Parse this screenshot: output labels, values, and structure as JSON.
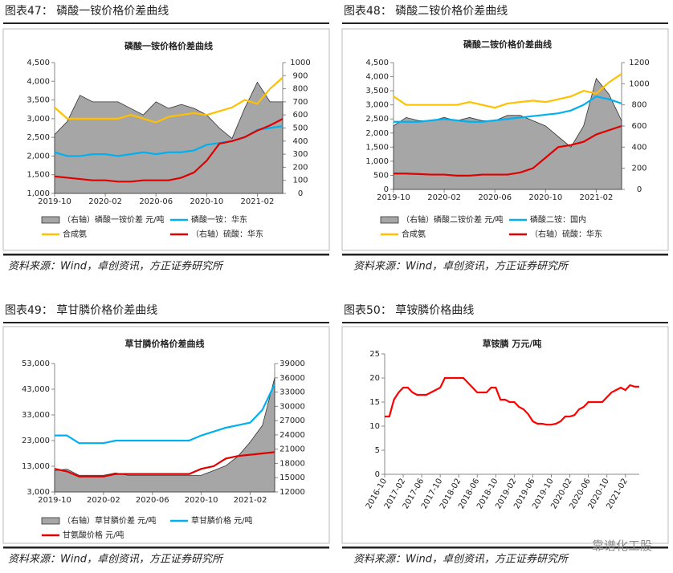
{
  "figures": [
    {
      "heading": "图表47： 磷酸一铵价格价差曲线",
      "source": "资料来源：Wind，卓创资讯，方正证券研究所"
    },
    {
      "heading": "图表48： 磷酸二铵价格价差曲线",
      "source": "资料来源：Wind，卓创资讯，方正证券研究所"
    },
    {
      "heading": "图表49： 草甘膦价格价差曲线",
      "source": "资料来源：Wind，卓创资讯，方正证券研究所"
    },
    {
      "heading": "图表50： 草铵膦价格曲线",
      "source": "资料来源：Wind，卓创资讯，方正证券研究所"
    }
  ],
  "watermark": "靠谱化工股",
  "chart_data": [
    {
      "type": "line",
      "title": "磷酸一铵价格价差曲线",
      "categories": [
        "2019-10",
        null,
        null,
        null,
        "2020-02",
        null,
        null,
        null,
        "2020-06",
        null,
        null,
        null,
        "2020-10",
        null,
        null,
        null,
        "2021-02",
        null,
        null
      ],
      "ylim": [
        1000,
        4500
      ],
      "yticks": [
        {
          "value": 1000,
          "label": "1,000"
        },
        {
          "value": 1500,
          "label": "1,500"
        },
        {
          "value": 2000,
          "label": "2,000"
        },
        {
          "value": 2500,
          "label": "2,500"
        },
        {
          "value": 3000,
          "label": "3,000"
        },
        {
          "value": 3500,
          "label": "3,500"
        },
        {
          "value": 4000,
          "label": "4,000"
        },
        {
          "value": 4500,
          "label": "4,500"
        }
      ],
      "y2lim": [
        0,
        1000
      ],
      "y2ticks": [
        0,
        100,
        200,
        300,
        400,
        500,
        600,
        700,
        800,
        900,
        1000
      ],
      "series": [
        {
          "name": "（右轴）磷酸一铵价差 元/吨",
          "color": "#a6a6a6",
          "style": "area",
          "axis": "y2",
          "values": [
            450,
            550,
            750,
            700,
            700,
            700,
            650,
            600,
            700,
            650,
            680,
            650,
            600,
            500,
            420,
            650,
            850,
            700,
            700
          ]
        },
        {
          "name": "磷酸一铵：华东",
          "color": "#00b0f0",
          "values": [
            2100,
            2000,
            2000,
            2050,
            2050,
            2000,
            2050,
            2100,
            2050,
            2100,
            2100,
            2150,
            2300,
            2350,
            2400,
            2500,
            2700,
            2750,
            2800
          ]
        },
        {
          "name": "合成氨",
          "color": "#ffc000",
          "values": [
            3300,
            3000,
            3000,
            3000,
            3000,
            3000,
            3100,
            3000,
            2900,
            3050,
            3100,
            3150,
            3100,
            3200,
            3300,
            3500,
            3400,
            3800,
            4100
          ]
        },
        {
          "name": "（右轴）硫酸：华东",
          "color": "#e00000",
          "axis": "y2",
          "values": [
            130,
            120,
            110,
            100,
            100,
            90,
            90,
            100,
            100,
            100,
            120,
            160,
            250,
            380,
            400,
            430,
            480,
            520,
            570
          ]
        }
      ]
    },
    {
      "type": "line",
      "title": "磷酸二铵价格价差曲线",
      "categories": [
        "2019-10",
        null,
        null,
        null,
        "2020-02",
        null,
        null,
        null,
        "2020-06",
        null,
        null,
        null,
        "2020-10",
        null,
        null,
        null,
        "2021-02",
        null,
        null
      ],
      "ylim": [
        0,
        4500
      ],
      "yticks": [
        0,
        {
          "value": 500,
          "label": "500"
        },
        {
          "value": 1000,
          "label": "1,000"
        },
        {
          "value": 1500,
          "label": "1,500"
        },
        {
          "value": 2000,
          "label": "2,000"
        },
        {
          "value": 2500,
          "label": "2,500"
        },
        {
          "value": 3000,
          "label": "3,000"
        },
        {
          "value": 3500,
          "label": "3,500"
        },
        {
          "value": 4000,
          "label": "4,000"
        },
        {
          "value": 4500,
          "label": "4,500"
        }
      ],
      "y2lim": [
        0,
        1200
      ],
      "y2ticks": [
        0,
        200,
        400,
        600,
        800,
        1000,
        1200
      ],
      "series": [
        {
          "name": "（右轴）磷酸二铵价差 元/吨",
          "color": "#a6a6a6",
          "style": "area",
          "axis": "y2",
          "values": [
            600,
            680,
            650,
            650,
            680,
            650,
            680,
            650,
            650,
            700,
            700,
            650,
            600,
            500,
            400,
            600,
            1050,
            900,
            650
          ]
        },
        {
          "name": "磷酸二铵：国内",
          "color": "#00b0f0",
          "values": [
            2400,
            2400,
            2400,
            2450,
            2500,
            2450,
            2400,
            2400,
            2450,
            2500,
            2550,
            2600,
            2650,
            2700,
            2800,
            3000,
            3300,
            3200,
            3050
          ]
        },
        {
          "name": "合成氨",
          "color": "#ffc000",
          "values": [
            3300,
            3000,
            3000,
            3000,
            3000,
            3000,
            3100,
            3000,
            2900,
            3050,
            3100,
            3150,
            3100,
            3200,
            3300,
            3500,
            3400,
            3800,
            4100
          ]
        },
        {
          "name": "（右轴）硫酸：华东",
          "color": "#e00000",
          "axis": "y2",
          "values": [
            150,
            150,
            145,
            140,
            140,
            130,
            130,
            140,
            140,
            140,
            160,
            200,
            300,
            400,
            420,
            450,
            520,
            560,
            600
          ]
        }
      ]
    },
    {
      "type": "line",
      "title": "草甘膦价格价差曲线",
      "categories": [
        "2019-10",
        null,
        null,
        null,
        "2020-02",
        null,
        null,
        null,
        "2020-06",
        null,
        null,
        null,
        "2020-10",
        null,
        null,
        null,
        "2021-02",
        null,
        null
      ],
      "ylim": [
        3000,
        53000
      ],
      "yticks": [
        {
          "value": 3000,
          "label": "3,000"
        },
        {
          "value": 13000,
          "label": "13,000"
        },
        {
          "value": 23000,
          "label": "23,000"
        },
        {
          "value": 33000,
          "label": "33,000"
        },
        {
          "value": 43000,
          "label": "43,000"
        },
        {
          "value": 53000,
          "label": "53,000"
        }
      ],
      "y2lim": [
        12000,
        39000
      ],
      "y2ticks": [
        12000,
        15000,
        18000,
        21000,
        24000,
        27000,
        30000,
        33000,
        36000,
        39000
      ],
      "series": [
        {
          "name": "（右轴）草甘膦价差 元/吨",
          "color": "#a6a6a6",
          "style": "area",
          "axis": "y2",
          "values": [
            16500,
            16800,
            15500,
            15500,
            15500,
            16000,
            15500,
            15500,
            15500,
            15500,
            15500,
            15500,
            15500,
            16500,
            17500,
            19500,
            22500,
            26000,
            36000
          ]
        },
        {
          "name": "草甘膦价格 元/吨",
          "color": "#00b0f0",
          "values": [
            25000,
            25000,
            22000,
            22000,
            22000,
            23000,
            23000,
            23000,
            23000,
            23000,
            23000,
            23000,
            25000,
            26500,
            28000,
            29000,
            30000,
            35000,
            45000
          ]
        },
        {
          "name": "甘氨酸价格 元/吨",
          "color": "#e00000",
          "values": [
            12000,
            11000,
            9000,
            9000,
            9000,
            10000,
            10000,
            10000,
            10000,
            10000,
            10000,
            10000,
            12000,
            13000,
            16000,
            17000,
            17500,
            18000,
            18500
          ]
        }
      ]
    },
    {
      "type": "line",
      "title": "草铵膦 万元/吨",
      "categories": [
        "2016-10",
        null,
        null,
        null,
        "2017-02",
        null,
        null,
        null,
        "2017-06",
        null,
        null,
        null,
        "2017-10",
        null,
        null,
        null,
        "2018-02",
        null,
        null,
        null,
        "2018-06",
        null,
        null,
        null,
        "2018-10",
        null,
        null,
        null,
        "2019-02",
        null,
        null,
        null,
        "2019-06",
        null,
        null,
        null,
        "2019-10",
        null,
        null,
        null,
        "2020-02",
        null,
        null,
        null,
        "2020-06",
        null,
        null,
        null,
        "2020-10",
        null,
        null,
        null,
        "2021-02",
        null,
        null,
        null
      ],
      "ylim": [
        0,
        25
      ],
      "yticks": [
        0,
        5,
        10,
        15,
        20,
        25
      ],
      "series": [
        {
          "name": "草铵膦",
          "color": "#ff0000",
          "values": [
            12,
            12,
            15.5,
            17,
            18,
            18,
            17,
            16.5,
            16.5,
            16.5,
            17,
            17.5,
            18,
            20,
            20,
            20,
            20,
            20,
            19,
            18,
            17,
            17,
            17,
            18,
            18,
            15.5,
            15.5,
            15,
            15,
            14,
            13.5,
            12.5,
            11,
            10.5,
            10.5,
            10.3,
            10.3,
            10.5,
            11,
            12,
            12,
            12.3,
            13.5,
            14,
            15,
            15,
            15,
            15,
            16,
            17,
            17.5,
            18,
            17.5,
            18.5,
            18.2,
            18.2
          ]
        }
      ]
    }
  ]
}
